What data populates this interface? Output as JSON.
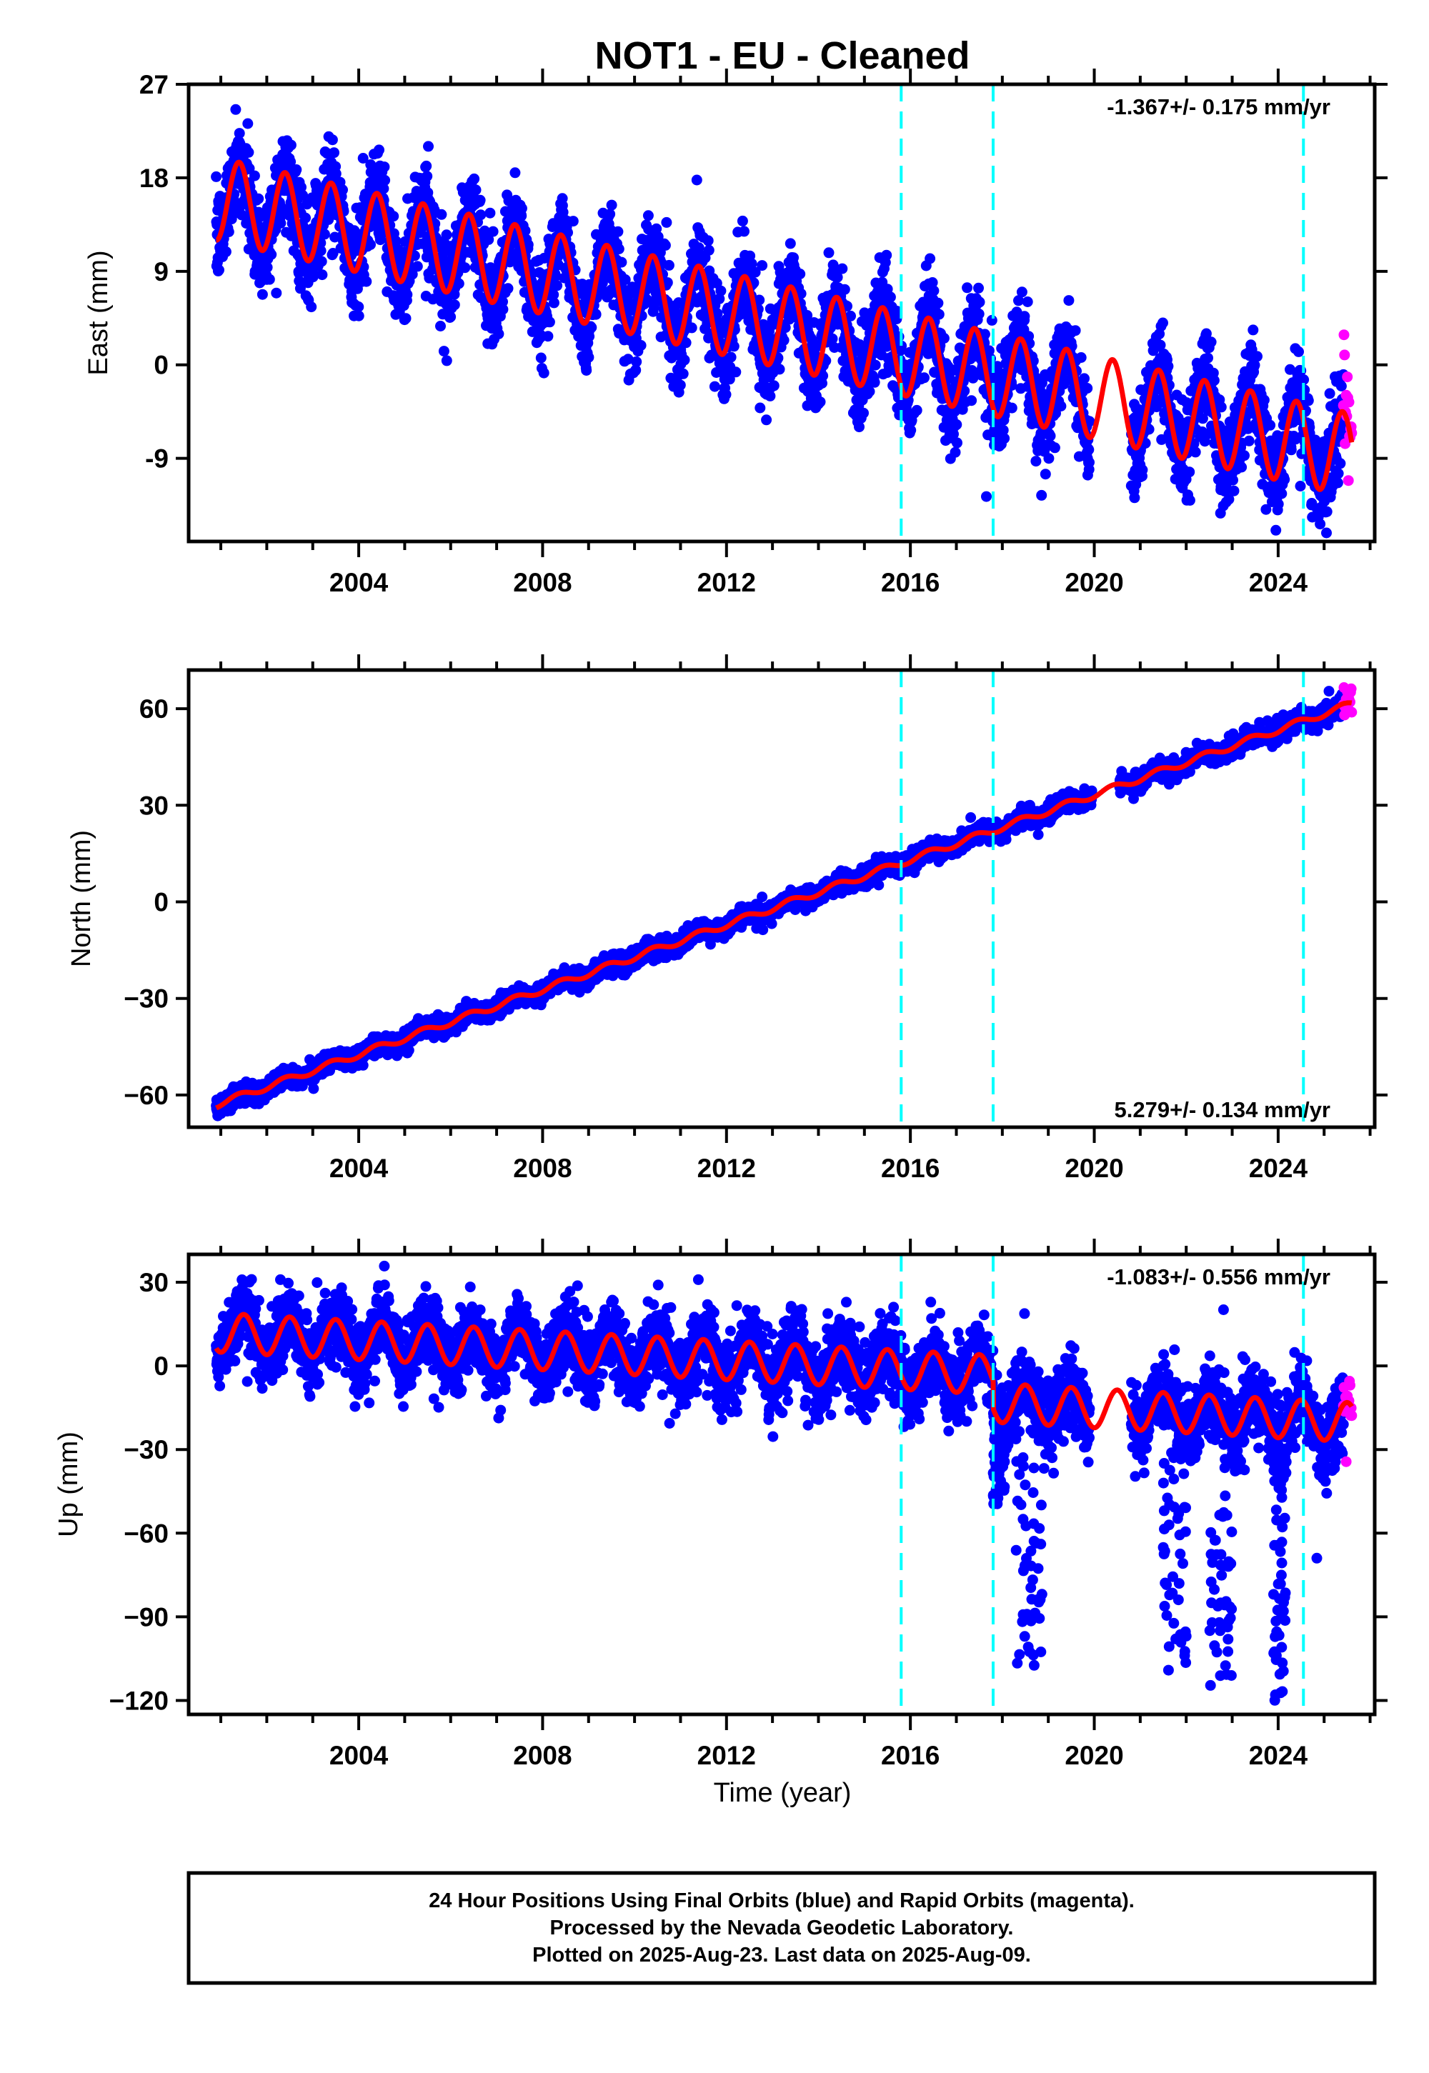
{
  "title": "NOT1  - EU - Cleaned",
  "colors": {
    "final": "#0000ff",
    "rapid": "#ff00ff",
    "model": "#ff0000",
    "event": "#00ffff",
    "frame": "#000000"
  },
  "chart_data": [
    {
      "type": "scatter",
      "panel": "east",
      "ylabel": "East (mm)",
      "xlabel": "",
      "xlim": [
        2000.3,
        2026.1
      ],
      "ylim": [
        -17,
        27
      ],
      "yticks": [
        27,
        18,
        9,
        0,
        -9
      ],
      "ytick_labels": [
        "27",
        "18",
        "9",
        "0",
        "-9"
      ],
      "xticks": [
        2004,
        2008,
        2012,
        2016,
        2020,
        2024
      ],
      "xtick_labels": [
        "2004",
        "2008",
        "2012",
        "2016",
        "2020",
        "2024"
      ],
      "rate_label": "-1.367+/- 0.175 mm/yr",
      "rate_position": "top-right",
      "events": [
        2015.8,
        2017.8,
        2024.55
      ],
      "model": {
        "intercept": 16,
        "slope": -1.0,
        "amplitude": 4.0,
        "peak_phase": 0.4
      },
      "series": [
        {
          "name": "Final Orbits",
          "color": "#0000ff",
          "x_range": [
            2000.9,
            2025.42
          ],
          "scatter_sd": 2.2
        },
        {
          "name": "Rapid Orbits",
          "color": "#ff00ff",
          "x_range": [
            2025.42,
            2025.6
          ],
          "scatter_sd": 2.5
        }
      ]
    },
    {
      "type": "scatter",
      "panel": "north",
      "ylabel": "North (mm)",
      "xlabel": "",
      "xlim": [
        2000.3,
        2026.1
      ],
      "ylim": [
        -70,
        72
      ],
      "yticks": [
        60,
        30,
        0,
        -30,
        -60
      ],
      "ytick_labels": [
        "60",
        "30",
        "0",
        "−30",
        "−60"
      ],
      "xticks": [
        2004,
        2008,
        2012,
        2016,
        2020,
        2024
      ],
      "xtick_labels": [
        "2004",
        "2008",
        "2012",
        "2016",
        "2020",
        "2024"
      ],
      "rate_label": "5.279+/- 0.134 mm/yr",
      "rate_position": "bottom-right",
      "events": [
        2015.8,
        2017.8,
        2024.55
      ],
      "model": {
        "intercept": -63,
        "slope": 5.04,
        "amplitude": 1.0,
        "peak_phase": 0.4
      },
      "series": [
        {
          "name": "Final Orbits",
          "color": "#0000ff",
          "x_range": [
            2000.9,
            2025.42
          ],
          "scatter_sd": 1.4
        },
        {
          "name": "Rapid Orbits",
          "color": "#ff00ff",
          "x_range": [
            2025.42,
            2025.6
          ],
          "scatter_sd": 2.5
        }
      ]
    },
    {
      "type": "scatter",
      "panel": "up",
      "ylabel": "Up (mm)",
      "xlabel": "Time (year)",
      "xlim": [
        2000.3,
        2026.1
      ],
      "ylim": [
        -125,
        40
      ],
      "yticks": [
        30,
        0,
        -30,
        -60,
        -90,
        -120
      ],
      "ytick_labels": [
        "30",
        "0",
        "−30",
        "−60",
        "−90",
        "−120"
      ],
      "xticks": [
        2004,
        2008,
        2012,
        2016,
        2020,
        2024
      ],
      "xtick_labels": [
        "2004",
        "2008",
        "2012",
        "2016",
        "2020",
        "2024"
      ],
      "rate_label": "-1.083+/- 0.556 mm/yr",
      "rate_position": "top-right",
      "events": [
        2015.8,
        2017.8,
        2024.55
      ],
      "model": {
        "intercept": 12,
        "slope": -0.9,
        "amplitude": 7.0,
        "peak_phase": 0.5,
        "offset_after_2017_8": -10
      },
      "outlier_clusters": [
        {
          "x_range": [
            2017.8,
            2018.05
          ],
          "y_range": [
            -50,
            -20
          ]
        },
        {
          "x_range": [
            2018.3,
            2018.9
          ],
          "y_range": [
            -108,
            -30
          ]
        },
        {
          "x_range": [
            2021.5,
            2022.0
          ],
          "y_range": [
            -110,
            -30
          ]
        },
        {
          "x_range": [
            2022.5,
            2023.0
          ],
          "y_range": [
            -118,
            -45
          ]
        },
        {
          "x_range": [
            2023.9,
            2024.2
          ],
          "y_range": [
            -122,
            -35
          ]
        }
      ],
      "series": [
        {
          "name": "Final Orbits",
          "color": "#0000ff",
          "x_range": [
            2000.9,
            2025.42
          ],
          "scatter_sd": 6.5
        },
        {
          "name": "Rapid Orbits",
          "color": "#ff00ff",
          "x_range": [
            2025.42,
            2025.6
          ],
          "scatter_sd": 8
        }
      ]
    }
  ],
  "footer": {
    "line1": "24 Hour Positions Using Final Orbits (blue) and Rapid Orbits (magenta).",
    "line2": "Processed by the Nevada Geodetic Laboratory.",
    "line3": "Plotted on 2025-Aug-23. Last data on 2025-Aug-09."
  }
}
